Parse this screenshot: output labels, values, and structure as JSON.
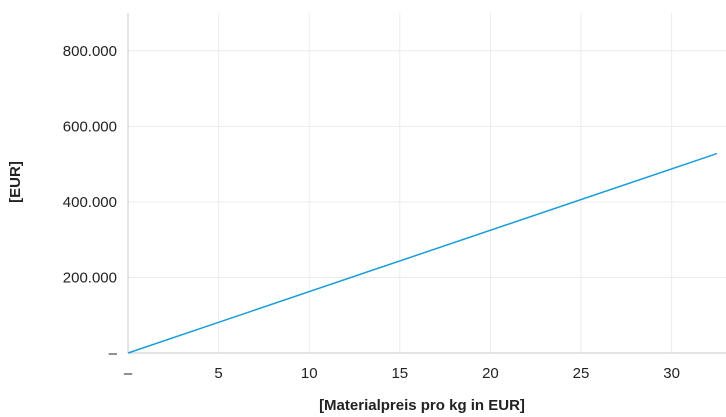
{
  "chart_data": {
    "type": "line",
    "xlabel": "[Materialpreis pro kg in EUR]",
    "ylabel": "[EUR]",
    "xlim": [
      0,
      33
    ],
    "ylim": [
      0,
      900000
    ],
    "grid": true,
    "x_ticks": [
      0,
      5,
      10,
      15,
      20,
      25,
      30
    ],
    "x_tick_labels": [
      "–",
      "5",
      "10",
      "15",
      "20",
      "25",
      "30"
    ],
    "y_ticks": [
      0,
      200000,
      400000,
      600000,
      800000
    ],
    "y_tick_labels": [
      "–",
      "200.000",
      "400.000",
      "600.000",
      "800.000"
    ],
    "line_color": "#1a9ed8",
    "series": [
      {
        "x": [
          0,
          32.5
        ],
        "y": [
          0,
          528000
        ]
      }
    ]
  }
}
